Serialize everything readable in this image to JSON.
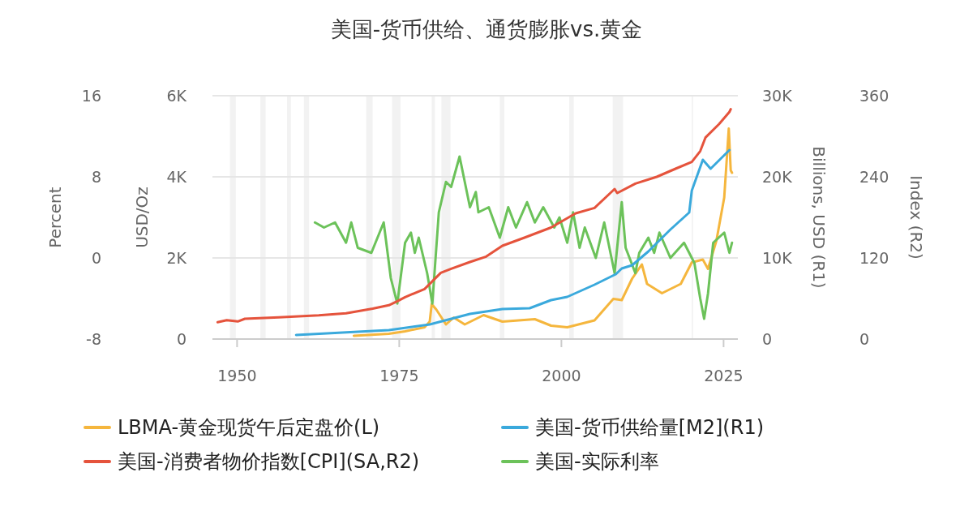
{
  "chart_data": [
    {
      "type": "line",
      "title": "美国-货币供给、通货膨胀vs.黄金",
      "xlim": [
        1946.2,
        2027.2
      ],
      "xticks": [
        1950,
        1975,
        2000,
        2025
      ],
      "ylim": [
        -8,
        16
      ],
      "yticks": [
        -8,
        0,
        8,
        16
      ],
      "ylabel": "Percent",
      "y2lim": [
        0,
        6000
      ],
      "y2ticks": [
        0,
        {
          "value": 2000,
          "label": "2K"
        },
        {
          "value": 4000,
          "label": "4K"
        },
        {
          "value": 6000,
          "label": "6K"
        }
      ],
      "y2label": "USD/Oz",
      "grid": "y",
      "legend": "bottom",
      "marker": "none",
      "line_style": "solid",
      "bands": [
        {
          "axis": "x",
          "from": 1948.9,
          "to": 1949.8,
          "color": "#f2f2f2"
        },
        {
          "axis": "x",
          "from": 1953.6,
          "to": 1954.4,
          "color": "#f2f2f2"
        },
        {
          "axis": "x",
          "from": 1957.7,
          "to": 1958.3,
          "color": "#f2f2f2"
        },
        {
          "axis": "x",
          "from": 1960.3,
          "to": 1961.1,
          "color": "#f2f2f2"
        },
        {
          "axis": "x",
          "from": 1969.9,
          "to": 1970.9,
          "color": "#f2f2f2"
        },
        {
          "axis": "x",
          "from": 1973.9,
          "to": 1975.2,
          "color": "#f2f2f2"
        },
        {
          "axis": "x",
          "from": 1980.0,
          "to": 1980.5,
          "color": "#f2f2f2"
        },
        {
          "axis": "x",
          "from": 1981.5,
          "to": 1982.9,
          "color": "#f2f2f2"
        },
        {
          "axis": "x",
          "from": 1990.5,
          "to": 1991.2,
          "color": "#f2f2f2"
        },
        {
          "axis": "x",
          "from": 2001.2,
          "to": 2001.9,
          "color": "#f2f2f2"
        },
        {
          "axis": "x",
          "from": 2007.9,
          "to": 2009.5,
          "color": "#f2f2f2"
        },
        {
          "axis": "x",
          "from": 2020.1,
          "to": 2020.3,
          "color": "#f2f2f2"
        }
      ],
      "series": [
        {
          "name": "LBMA-黄金现货午后定盘价(L)",
          "color": "#f5b63d",
          "axis": "y2",
          "x": [
            1968.0,
            1973.4,
            1975.9,
            1978.9,
            1979.7,
            1980.0,
            1980.7,
            1982.2,
            1983.4,
            1985.1,
            1988.0,
            1990.9,
            1995.9,
            1998.4,
            2000.9,
            2005.1,
            2008.0,
            2009.3,
            2010.9,
            2012.4,
            2013.2,
            2015.5,
            2018.4,
            2020.1,
            2021.8,
            2022.6,
            2023.9,
            2025.1,
            2025.8,
            2026.1,
            2026.3
          ],
          "values": [
            80,
            130,
            190,
            290,
            430,
            860,
            730,
            360,
            530,
            360,
            590,
            430,
            490,
            330,
            290,
            460,
            990,
            960,
            1490,
            1840,
            1360,
            1130,
            1360,
            1890,
            1960,
            1730,
            2430,
            3490,
            5190,
            4160,
            4100
          ]
        },
        {
          "name": "美国-实际利率",
          "color": "#6cc25a",
          "x": [
            1962.0,
            1963.4,
            1965.1,
            1966.8,
            1967.6,
            1968.6,
            1970.7,
            1972.6,
            1973.7,
            1974.5,
            1974.7,
            1975.9,
            1976.8,
            1977.4,
            1978.0,
            1979.3,
            1980.1,
            1981.1,
            1982.2,
            1983.0,
            1984.3,
            1985.9,
            1986.8,
            1987.2,
            1988.8,
            1990.5,
            1991.8,
            1993.0,
            1994.7,
            1995.9,
            1997.2,
            1998.9,
            1999.7,
            2000.9,
            2001.8,
            2002.8,
            2003.6,
            2005.3,
            2006.6,
            2008.2,
            2009.3,
            2009.9,
            2011.4,
            2012.0,
            2013.4,
            2014.3,
            2015.1,
            2016.8,
            2018.9,
            2020.5,
            2021.4,
            2022.0,
            2022.6,
            2023.4,
            2025.1,
            2025.9,
            2026.3
          ],
          "values": [
            3.5,
            3,
            3.5,
            1.5,
            3.5,
            1,
            0.5,
            3.5,
            -2,
            -4,
            -4.5,
            1.5,
            2.5,
            0.5,
            2,
            -1.5,
            -4.5,
            4.5,
            7.5,
            7,
            10,
            5,
            6.5,
            4.5,
            5,
            2,
            5,
            3,
            5.5,
            3.5,
            5,
            3,
            4,
            1.5,
            4.5,
            1,
            3,
            0,
            3.5,
            -1.5,
            5.5,
            1,
            -1.5,
            0.5,
            2,
            0.5,
            2.5,
            0,
            1.5,
            -0.5,
            -4,
            -6,
            -3.5,
            1.5,
            2.5,
            0.5,
            1.5
          ]
        }
      ]
    },
    {
      "type": "line",
      "tick_labels": "y",
      "xlim": [
        1946.2,
        2027.2
      ],
      "ylim": [
        0,
        30000
      ],
      "yticks": [
        0,
        {
          "value": 10000,
          "label": "10K"
        },
        {
          "value": 20000,
          "label": "20K"
        },
        {
          "value": 30000,
          "label": "30K"
        }
      ],
      "ylabel": "Billions, USD (R1)",
      "y2lim": [
        0,
        360
      ],
      "y2ticks": [
        0,
        120,
        240,
        360
      ],
      "y2label": "Index (R2)",
      "legend": "bottom",
      "marker": "none",
      "line_style": "solid",
      "series": [
        {
          "name": "美国-货币供给量[M2](R1)",
          "color": "#3aa9dc",
          "x": [
            1959.1,
            1973.4,
            1979.7,
            1985.9,
            1990.9,
            1995.1,
            1998.4,
            2000.9,
            2005.1,
            2008.4,
            2009.3,
            2010.9,
            2013.4,
            2016.8,
            2019.7,
            2020.1,
            2021.8,
            2023.0,
            2025.9
          ],
          "values": [
            500,
            1100,
            1800,
            3100,
            3700,
            3800,
            4800,
            5200,
            6700,
            8000,
            8700,
            9100,
            10800,
            13500,
            15600,
            18300,
            22100,
            21000,
            23300
          ]
        },
        {
          "name": "美国-消费者物价指数[CPI](SA,R2)",
          "color": "#e5533c",
          "axis": "y2",
          "x": [
            1947.0,
            1948.4,
            1950.1,
            1951.2,
            1956.4,
            1962.6,
            1966.8,
            1970.9,
            1973.4,
            1974.7,
            1975.9,
            1978.9,
            1981.4,
            1983.0,
            1985.9,
            1988.4,
            1990.9,
            1994.3,
            1998.4,
            2002.2,
            2005.1,
            2008.2,
            2008.6,
            2011.4,
            2014.7,
            2017.6,
            2020.1,
            2021.4,
            2022.2,
            2024.3,
            2025.9,
            2026.1
          ],
          "values": [
            25,
            28,
            26,
            30,
            32,
            35,
            38,
            45,
            50,
            56,
            62,
            74,
            98,
            104,
            114,
            122,
            138,
            150,
            165,
            186,
            194,
            222,
            216,
            230,
            240,
            252,
            262,
            278,
            298,
            318,
            336,
            340
          ]
        }
      ]
    }
  ]
}
